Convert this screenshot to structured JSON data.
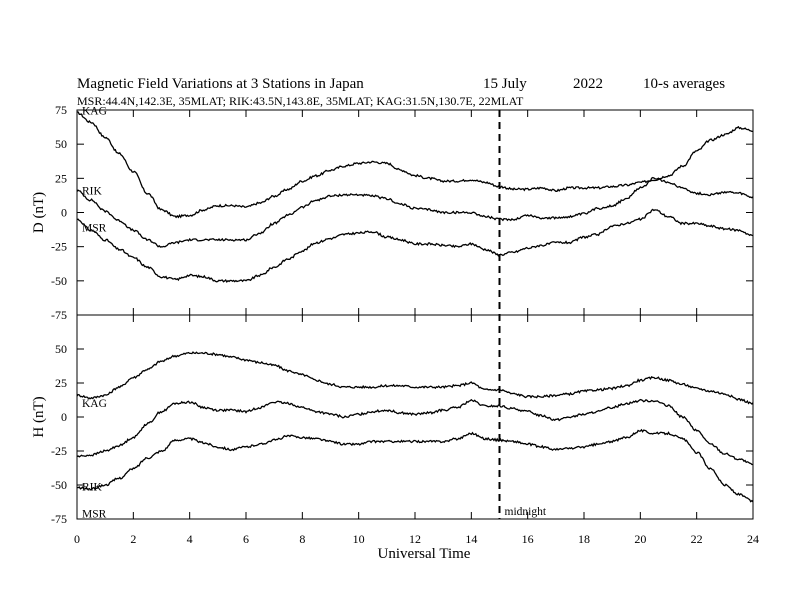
{
  "chart_data": {
    "type": "line",
    "title_parts": [
      "Magnetic Field Variations at 3 Stations in Japan",
      "15 July",
      "2022",
      "10-s averages"
    ],
    "subtitle": "MSR:44.4N,142.3E, 35MLAT;  RIK:43.5N,143.8E, 35MLAT;  KAG:31.5N,130.7E, 22MLAT",
    "xlabel": "Universal Time",
    "xlim": [
      0,
      24
    ],
    "xticks": [
      "0",
      "2",
      "4",
      "6",
      "8",
      "10",
      "12",
      "14",
      "16",
      "18",
      "20",
      "22",
      "24"
    ],
    "annotation": {
      "x": 15,
      "label": "midnight"
    },
    "panels": [
      {
        "ylabel": "D (nT)",
        "ylim": [
          -75,
          75
        ],
        "yticks": [
          "75",
          "50",
          "25",
          "0",
          "-25",
          "-50",
          "-75"
        ],
        "series": [
          {
            "name": "KAG",
            "x": [
              0,
              0.5,
              1,
              1.5,
              2,
              2.5,
              3,
              3.5,
              4,
              4.5,
              5,
              5.5,
              6,
              6.5,
              7,
              7.5,
              8,
              8.5,
              9,
              9.5,
              10,
              10.5,
              11,
              11.5,
              12,
              12.5,
              13,
              13.5,
              14,
              14.5,
              15,
              15.5,
              16,
              16.5,
              17,
              17.5,
              18,
              18.5,
              19,
              19.5,
              20,
              20.5,
              21,
              21.5,
              22,
              22.5,
              23,
              23.5,
              24
            ],
            "y": [
              73,
              66,
              55,
              43,
              30,
              14,
              2,
              -3,
              -2,
              2,
              5,
              5,
              4,
              7,
              12,
              17,
              23,
              27,
              31,
              34,
              36,
              37,
              36,
              31,
              27,
              25,
              23,
              23,
              24,
              22,
              19,
              17,
              17,
              18,
              16,
              18,
              18,
              18,
              19,
              20,
              22,
              24,
              27,
              34,
              45,
              53,
              57,
              62,
              60
            ]
          },
          {
            "name": "RIK",
            "x": [
              0,
              0.5,
              1,
              1.5,
              2,
              2.5,
              3,
              3.5,
              4,
              4.5,
              5,
              5.5,
              6,
              6.5,
              7,
              7.5,
              8,
              8.5,
              9,
              9.5,
              10,
              10.5,
              11,
              11.5,
              12,
              12.5,
              13,
              13.5,
              14,
              14.5,
              15,
              15.5,
              16,
              16.5,
              17,
              17.5,
              18,
              18.5,
              19,
              19.5,
              20,
              20.5,
              21,
              21.5,
              22,
              22.5,
              23,
              23.5,
              24
            ],
            "y": [
              16,
              9,
              1,
              -6,
              -13,
              -20,
              -25,
              -22,
              -20,
              -20,
              -20,
              -20,
              -20,
              -15,
              -8,
              -2,
              4,
              9,
              12,
              13,
              13,
              12,
              10,
              6,
              3,
              2,
              0,
              0,
              0,
              -3,
              -5,
              -5,
              -2,
              -4,
              -4,
              -3,
              -1,
              3,
              5,
              10,
              18,
              25,
              22,
              18,
              14,
              13,
              15,
              14,
              11
            ]
          },
          {
            "name": "MSR",
            "x": [
              0,
              0.5,
              1,
              1.5,
              2,
              2.5,
              3,
              3.5,
              4,
              4.5,
              5,
              5.5,
              6,
              6.5,
              7,
              7.5,
              8,
              8.5,
              9,
              9.5,
              10,
              10.5,
              11,
              11.5,
              12,
              12.5,
              13,
              13.5,
              14,
              14.5,
              15,
              15.5,
              16,
              16.5,
              17,
              17.5,
              18,
              18.5,
              19,
              19.5,
              20,
              20.5,
              21,
              21.5,
              22,
              22.5,
              23,
              23.5,
              24
            ],
            "y": [
              -5,
              -13,
              -20,
              -27,
              -33,
              -40,
              -47,
              -49,
              -46,
              -47,
              -50,
              -50,
              -50,
              -46,
              -40,
              -34,
              -28,
              -22,
              -19,
              -16,
              -15,
              -14,
              -18,
              -20,
              -23,
              -23,
              -24,
              -25,
              -23,
              -27,
              -31,
              -29,
              -26,
              -24,
              -22,
              -22,
              -18,
              -16,
              -10,
              -8,
              -5,
              2,
              -3,
              -8,
              -8,
              -10,
              -12,
              -13,
              -17
            ]
          }
        ]
      },
      {
        "ylabel": "H (nT)",
        "ylim": [
          -75,
          75
        ],
        "yticks": [
          "50",
          "25",
          "0",
          "-25",
          "-50",
          "-75"
        ],
        "series": [
          {
            "name": "KAG",
            "x": [
              0,
              0.5,
              1,
              1.5,
              2,
              2.5,
              3,
              3.5,
              4,
              4.5,
              5,
              5.5,
              6,
              6.5,
              7,
              7.5,
              8,
              8.5,
              9,
              9.5,
              10,
              10.5,
              11,
              11.5,
              12,
              12.5,
              13,
              13.5,
              14,
              14.5,
              15,
              15.5,
              16,
              16.5,
              17,
              17.5,
              18,
              18.5,
              19,
              19.5,
              20,
              20.5,
              21,
              21.5,
              22,
              22.5,
              23,
              23.5,
              24
            ],
            "y": [
              16,
              14,
              16,
              22,
              29,
              35,
              41,
              45,
              47,
              47,
              46,
              44,
              42,
              40,
              38,
              34,
              31,
              27,
              24,
              22,
              22,
              22,
              23,
              23,
              22,
              22,
              22,
              23,
              25,
              20,
              20,
              17,
              15,
              15,
              16,
              17,
              19,
              20,
              21,
              23,
              27,
              29,
              27,
              24,
              21,
              19,
              17,
              13,
              10
            ]
          },
          {
            "name": "RIK",
            "x": [
              0,
              0.5,
              1,
              1.5,
              2,
              2.5,
              3,
              3.5,
              4,
              4.5,
              5,
              5.5,
              6,
              6.5,
              7,
              7.5,
              8,
              8.5,
              9,
              9.5,
              10,
              10.5,
              11,
              11.5,
              12,
              12.5,
              13,
              13.5,
              14,
              14.5,
              15,
              15.5,
              16,
              16.5,
              17,
              17.5,
              18,
              18.5,
              19,
              19.5,
              20,
              20.5,
              21,
              21.5,
              22,
              22.5,
              23,
              23.5,
              24
            ],
            "y": [
              -29,
              -28,
              -25,
              -21,
              -15,
              -5,
              4,
              10,
              11,
              7,
              5,
              5,
              4,
              7,
              11,
              10,
              7,
              4,
              2,
              0,
              2,
              4,
              5,
              3,
              2,
              3,
              5,
              7,
              12,
              8,
              8,
              6,
              4,
              1,
              -2,
              0,
              2,
              4,
              7,
              10,
              12,
              12,
              8,
              0,
              -10,
              -20,
              -27,
              -31,
              -35
            ]
          },
          {
            "name": "MSR",
            "x": [
              0,
              0.5,
              1,
              1.5,
              2,
              2.5,
              3,
              3.5,
              4,
              4.5,
              5,
              5.5,
              6,
              6.5,
              7,
              7.5,
              8,
              8.5,
              9,
              9.5,
              10,
              10.5,
              11,
              11.5,
              12,
              12.5,
              13,
              13.5,
              14,
              14.5,
              15,
              15.5,
              16,
              16.5,
              17,
              17.5,
              18,
              18.5,
              19,
              19.5,
              20,
              20.5,
              21,
              21.5,
              22,
              22.5,
              23,
              23.5,
              24
            ],
            "y": [
              -52,
              -53,
              -50,
              -45,
              -38,
              -30,
              -25,
              -17,
              -16,
              -19,
              -22,
              -24,
              -22,
              -20,
              -17,
              -14,
              -15,
              -16,
              -18,
              -20,
              -20,
              -18,
              -18,
              -18,
              -18,
              -18,
              -18,
              -16,
              -12,
              -16,
              -17,
              -18,
              -20,
              -22,
              -24,
              -23,
              -22,
              -20,
              -18,
              -15,
              -10,
              -12,
              -12,
              -16,
              -26,
              -38,
              -50,
              -57,
              -62
            ]
          }
        ]
      }
    ]
  }
}
